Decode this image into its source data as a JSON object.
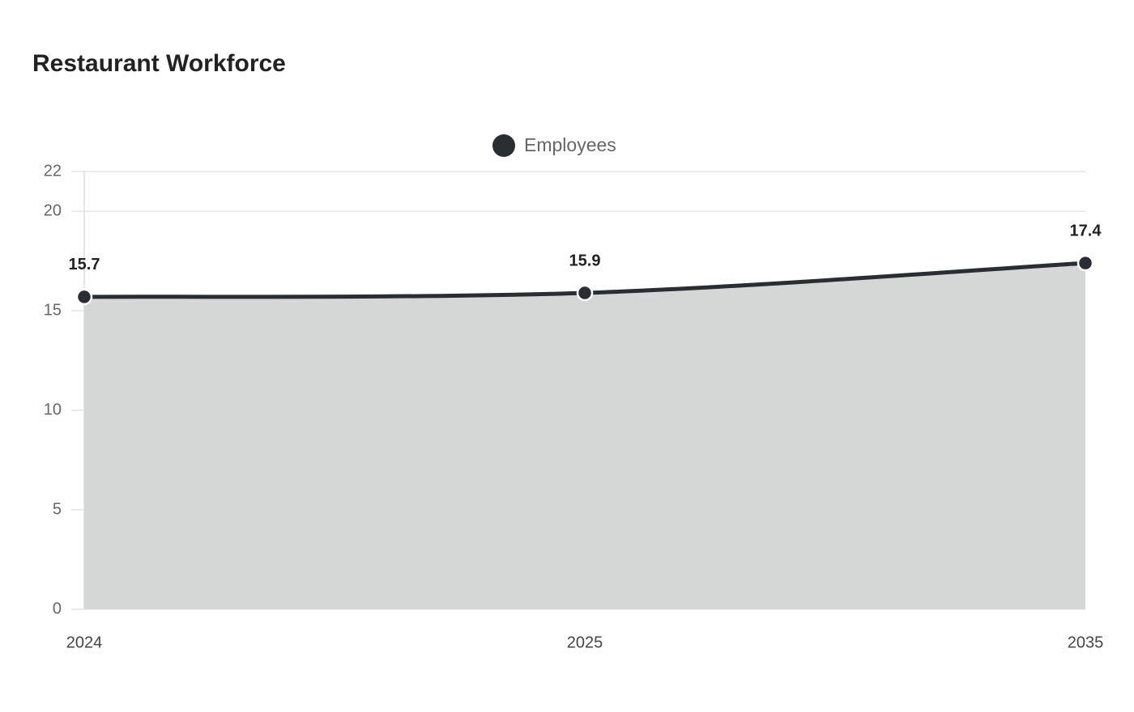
{
  "chart_data": {
    "type": "area",
    "title": "Restaurant Workforce",
    "categories": [
      "2024",
      "2025",
      "2035"
    ],
    "series": [
      {
        "name": "Employees",
        "color": "#2a2e33",
        "values": [
          15.7,
          15.9,
          17.4
        ]
      }
    ],
    "ylim": [
      0,
      22
    ],
    "yticks": [
      0,
      5,
      10,
      15,
      20,
      22
    ],
    "grid": true,
    "legend": "top"
  }
}
